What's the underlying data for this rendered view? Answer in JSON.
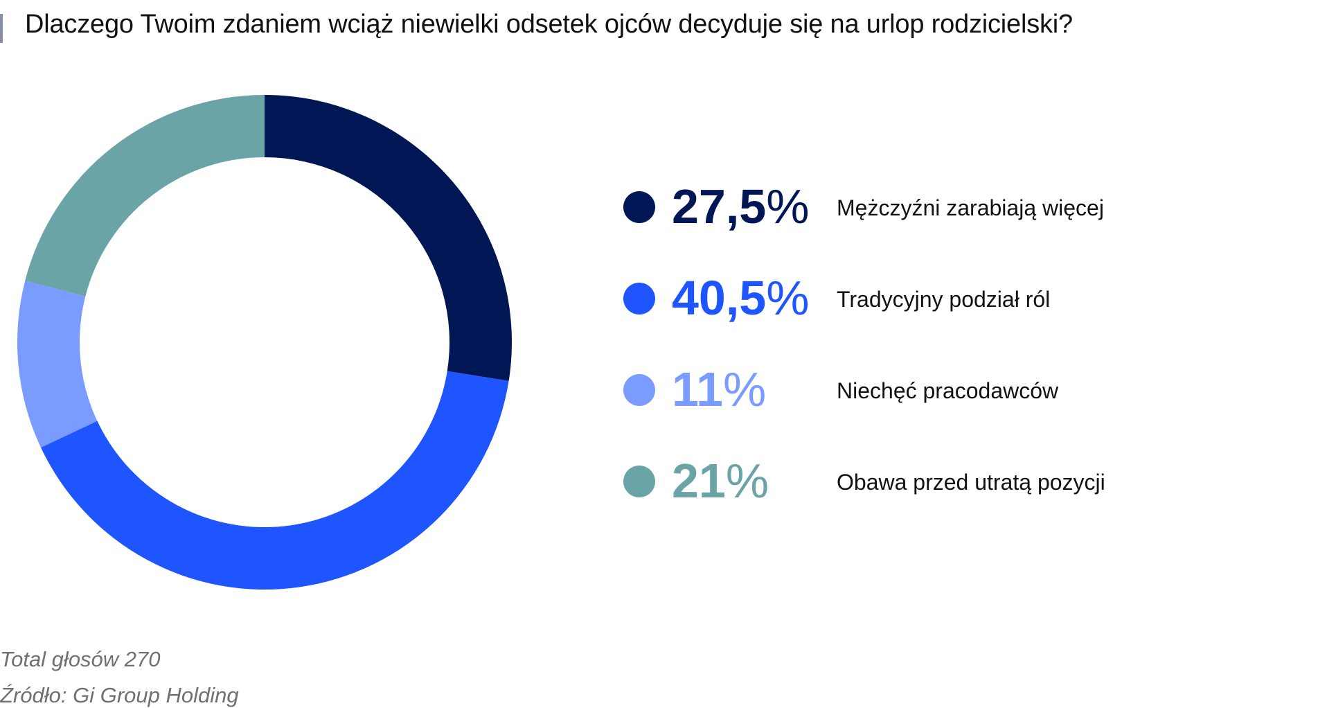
{
  "title": "Dlaczego Twoim zdaniem wciąż niewielki odsetek ojców decyduje się na urlop rodzicielski?",
  "colors": {
    "title_bar": "#8a8fa8",
    "footer_text": "#707070"
  },
  "chart_data": {
    "type": "pie",
    "variant": "donut",
    "title": "Dlaczego Twoim zdaniem wciąż niewielki odsetek ojców decyduje się na urlop rodzicielski?",
    "start_angle": "12 o'clock",
    "direction": "clockwise",
    "legend_position": "right",
    "slices": [
      {
        "label": "Mężczyźni zarabiają więcej",
        "value": 27.5,
        "number": "27,5",
        "unit": "%",
        "color": "#001655"
      },
      {
        "label": "Tradycyjny podział ról",
        "value": 40.5,
        "number": "40,5",
        "unit": "%",
        "color": "#1f55ff"
      },
      {
        "label": "Niechęć pracodawców",
        "value": 11,
        "number": "11",
        "unit": "%",
        "color": "#7a9bff"
      },
      {
        "label": "Obawa przed utratą pozycji",
        "value": 21,
        "number": "21",
        "unit": "%",
        "color": "#6aa4a6"
      }
    ]
  },
  "footer": {
    "total": "Total głosów 270",
    "source": "Źródło: Gi Group Holding"
  }
}
